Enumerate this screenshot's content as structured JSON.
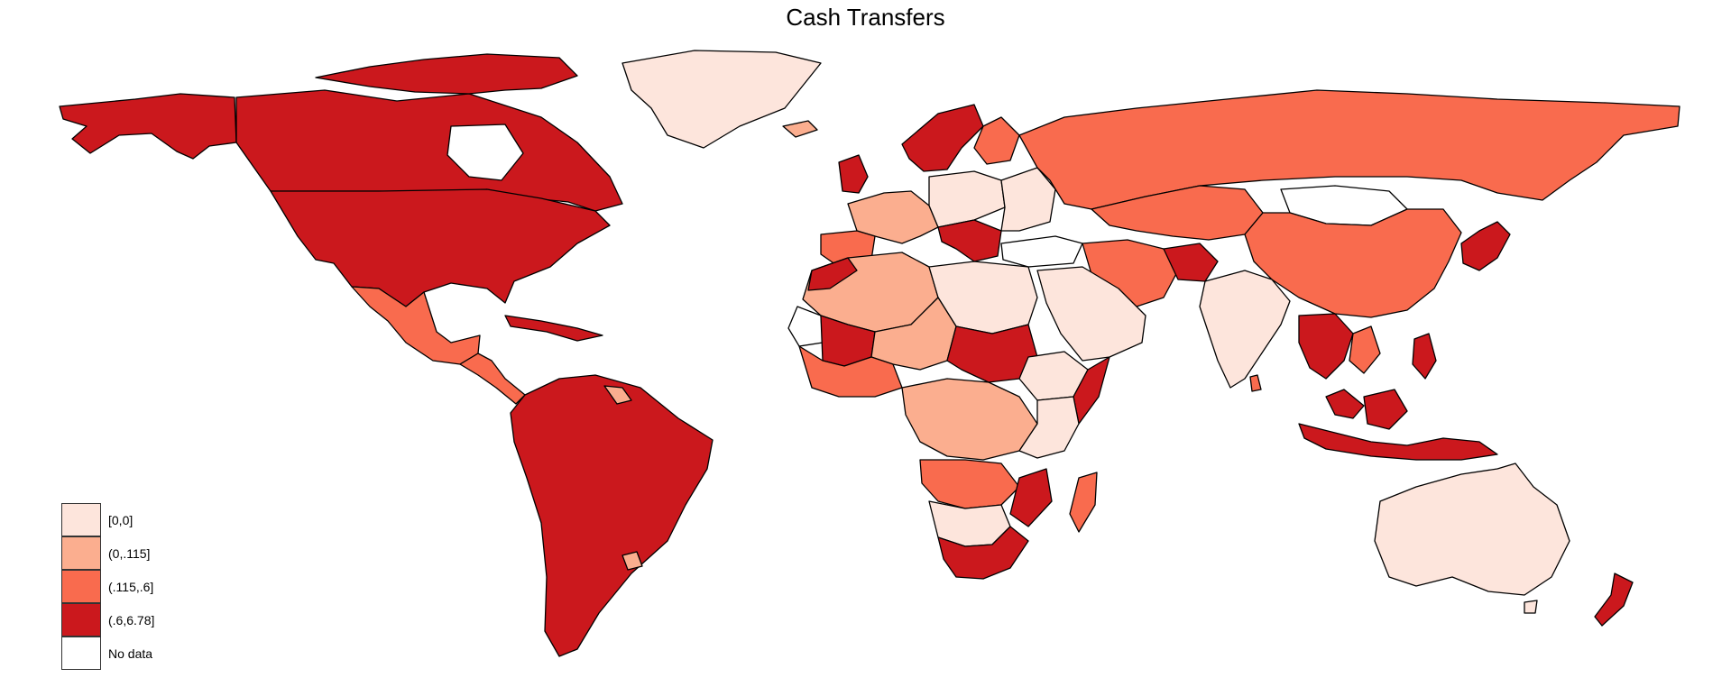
{
  "title": "Cash Transfers",
  "legend": [
    {
      "label": "[0,0]",
      "color": "#fde5dc"
    },
    {
      "label": "(0,.115]",
      "color": "#fbae8f"
    },
    {
      "label": "(.115,.6]",
      "color": "#f96b4e"
    },
    {
      "label": "(.6,6.78]",
      "color": "#cb181d"
    },
    {
      "label": "No data",
      "color": "#ffffff"
    }
  ]
}
